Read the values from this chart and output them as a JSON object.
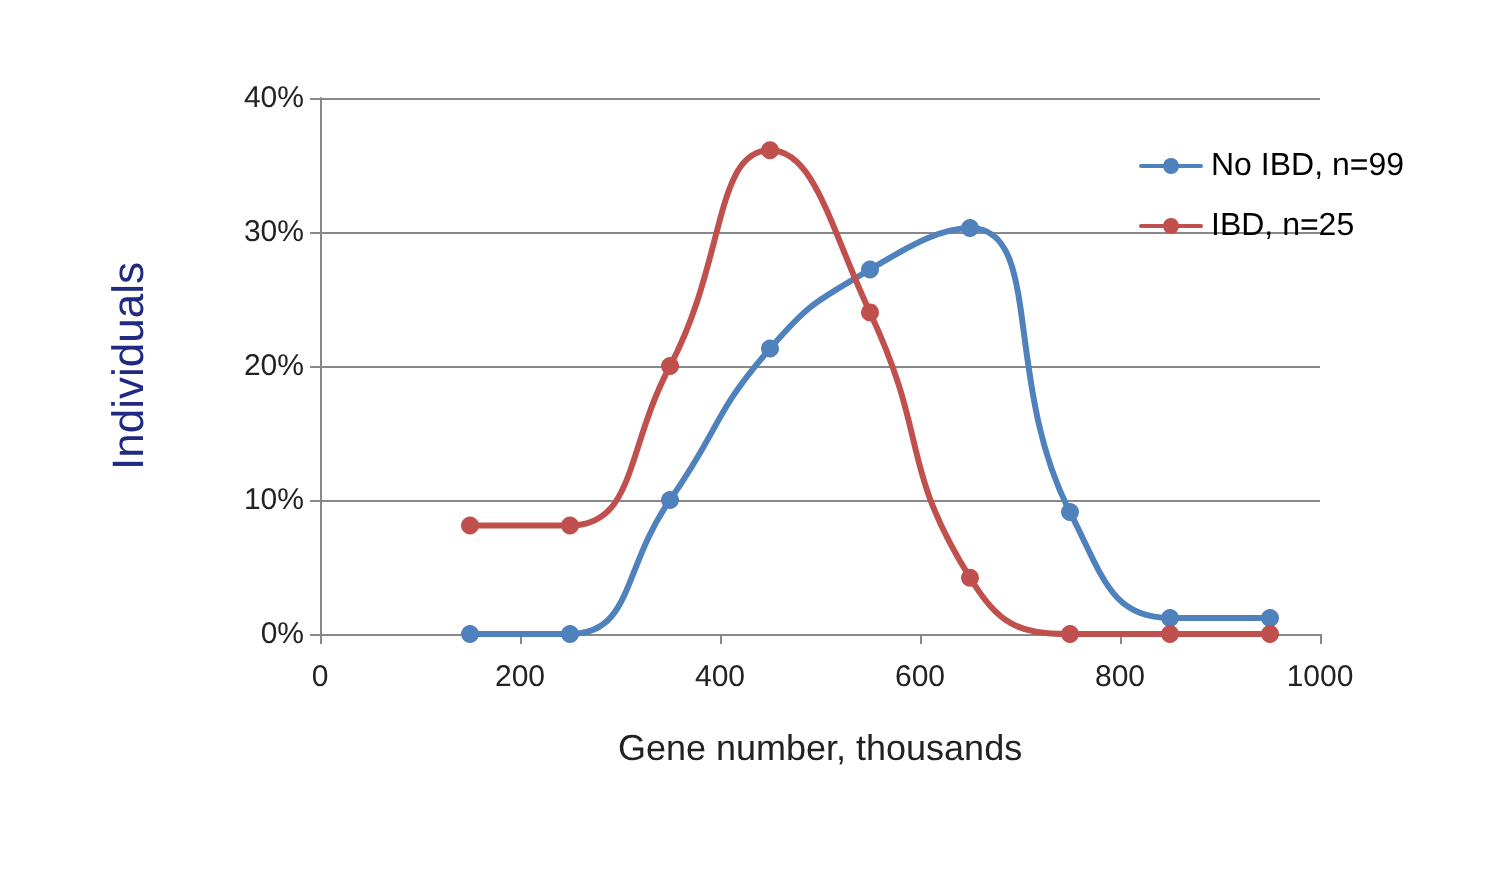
{
  "chart_data": {
    "type": "line",
    "xlabel": "Gene number, thousands",
    "ylabel": "Individuals",
    "x": [
      150,
      250,
      350,
      450,
      550,
      650,
      750,
      850,
      950
    ],
    "series": [
      {
        "name": "No IBD, n=99",
        "color": "#4f81bd",
        "values": [
          0,
          0,
          10,
          21.3,
          27.2,
          30.3,
          9.1,
          1.2,
          1.2
        ]
      },
      {
        "name": "IBD, n=25",
        "color": "#c0504d",
        "values": [
          8.1,
          8.1,
          20,
          36.1,
          24,
          4.2,
          0,
          0,
          0
        ]
      }
    ],
    "xlim": [
      0,
      1000
    ],
    "xticks": [
      0,
      200,
      400,
      600,
      800,
      1000
    ],
    "ylim": [
      0,
      40
    ],
    "yticks": [
      {
        "value": 0,
        "label": "0%"
      },
      {
        "value": 10,
        "label": "10%"
      },
      {
        "value": 20,
        "label": "20%"
      },
      {
        "value": 30,
        "label": "30%"
      },
      {
        "value": 40,
        "label": "40%"
      }
    ],
    "grid": "y",
    "legend": "top right",
    "marker": "circle",
    "line_style": "solid"
  }
}
